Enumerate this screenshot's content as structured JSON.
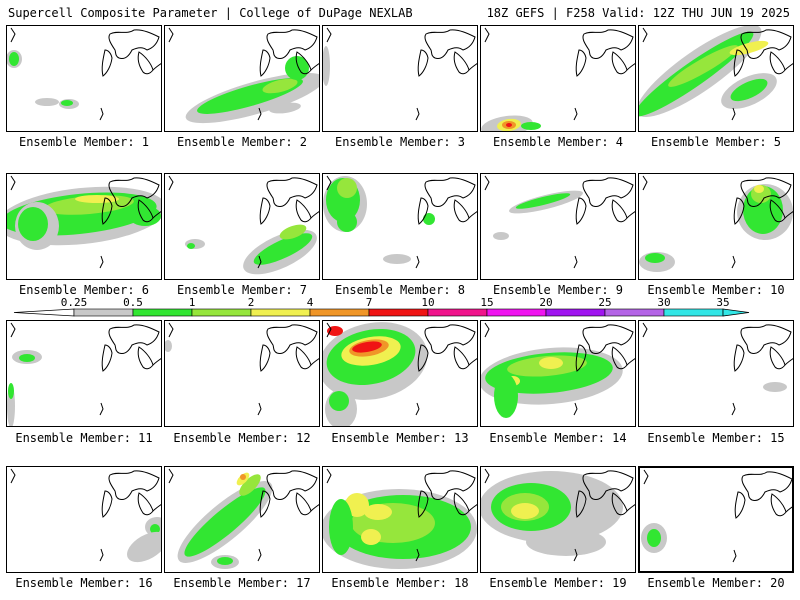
{
  "header": {
    "left": "Supercell Composite Parameter | College of DuPage NEXLAB",
    "right": "18Z GEFS | F258 Valid: 12Z THU JUN 19 2025"
  },
  "colorbar": {
    "labels": [
      "0.25",
      "0.5",
      "1",
      "2",
      "4",
      "7",
      "10",
      "15",
      "20",
      "25",
      "30",
      "35"
    ],
    "colors": [
      "#c8c8c8",
      "#32e632",
      "#96e63c",
      "#f0f050",
      "#f09628",
      "#f01414",
      "#f0148c",
      "#f014f0",
      "#a014f0",
      "#b464e6",
      "#32e6e6"
    ]
  },
  "panels": [
    {
      "label": "Ensemble Member: 1"
    },
    {
      "label": "Ensemble Member: 2"
    },
    {
      "label": "Ensemble Member: 3"
    },
    {
      "label": "Ensemble Member: 4"
    },
    {
      "label": "Ensemble Member: 5"
    },
    {
      "label": "Ensemble Member: 6"
    },
    {
      "label": "Ensemble Member: 7"
    },
    {
      "label": "Ensemble Member: 8"
    },
    {
      "label": "Ensemble Member: 9"
    },
    {
      "label": "Ensemble Member: 10"
    },
    {
      "label": "Ensemble Member: 11"
    },
    {
      "label": "Ensemble Member: 12"
    },
    {
      "label": "Ensemble Member: 13"
    },
    {
      "label": "Ensemble Member: 14"
    },
    {
      "label": "Ensemble Member: 15"
    },
    {
      "label": "Ensemble Member: 16"
    },
    {
      "label": "Ensemble Member: 17"
    },
    {
      "label": "Ensemble Member: 18"
    },
    {
      "label": "Ensemble Member: 19"
    },
    {
      "label": "Ensemble Member: 20"
    }
  ]
}
